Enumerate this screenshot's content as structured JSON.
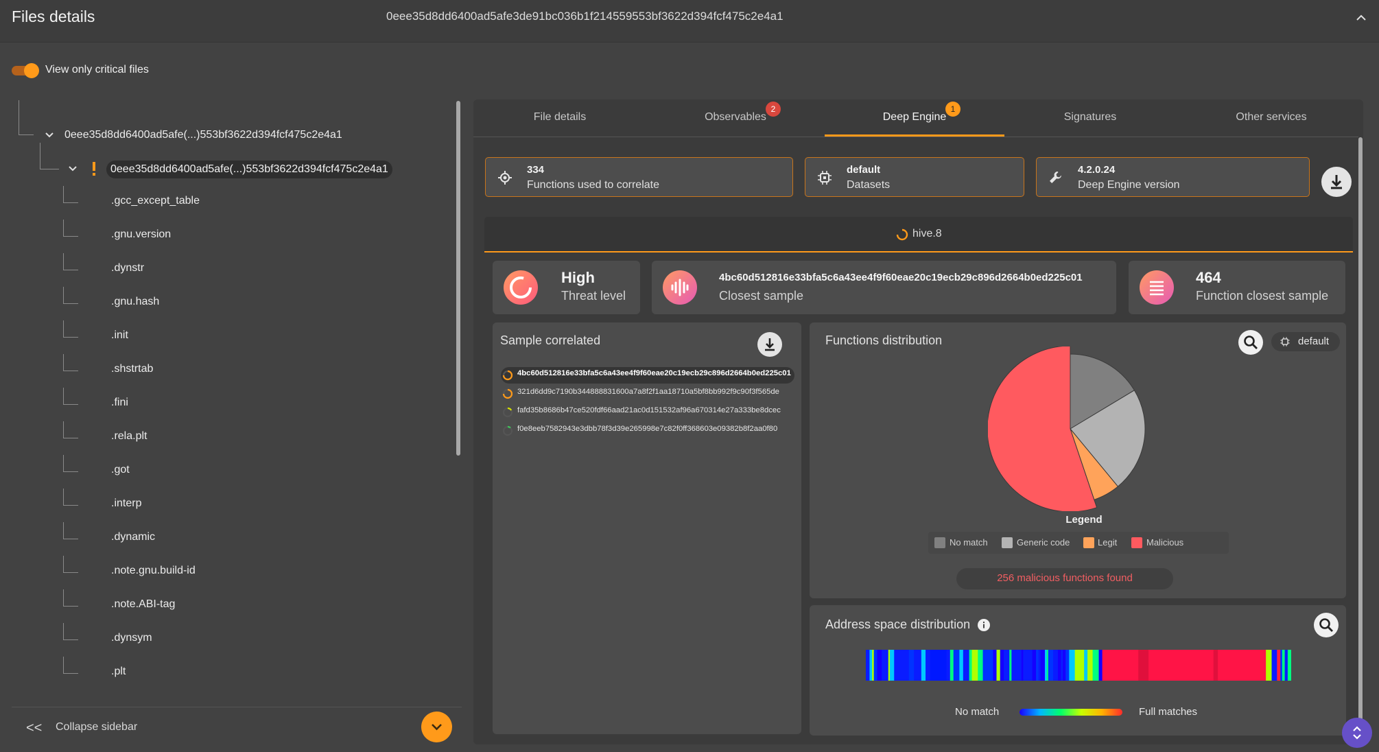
{
  "header": {
    "title": "Files details",
    "hash": "0eee35d8dd6400ad5afe3de91bc036b1f214559553bf3622d394fcf475c2e4a1"
  },
  "filter": {
    "toggle_label": "View only critical files",
    "enabled": true
  },
  "tree": {
    "root_label": "0eee35d8dd6400ad5afe(...)553bf3622d394fcf475c2e4a1",
    "child_label": "0eee35d8dd6400ad5afe(...)553bf3622d394fcf475c2e4a1",
    "sections": [
      ".gcc_except_table",
      ".gnu.version",
      ".dynstr",
      ".gnu.hash",
      ".init",
      ".shstrtab",
      ".fini",
      ".rela.plt",
      ".got",
      ".interp",
      ".dynamic",
      ".note.gnu.build-id",
      ".note.ABI-tag",
      ".dynsym",
      ".plt"
    ]
  },
  "sidebar_footer": {
    "collapse_label": "Collapse sidebar"
  },
  "tabs": [
    {
      "label": "File details",
      "badge": ""
    },
    {
      "label": "Observables",
      "badge": "2",
      "badge_color": "#d9473d"
    },
    {
      "label": "Deep Engine",
      "badge": "1",
      "badge_color": "#ff9a1a",
      "active": true
    },
    {
      "label": "Signatures",
      "badge": ""
    },
    {
      "label": "Other services",
      "badge": ""
    }
  ],
  "stats": [
    {
      "value": "334",
      "label": "Functions used to correlate",
      "icon": "target-icon"
    },
    {
      "value": "default",
      "label": "Datasets",
      "icon": "chip-icon"
    },
    {
      "value": "4.2.0.24",
      "label": "Deep Engine version",
      "icon": "wrench-icon"
    }
  ],
  "hive": {
    "label": "hive.8"
  },
  "summary": {
    "threat": {
      "value": "High",
      "label": "Threat level"
    },
    "closest": {
      "value": "4bc60d512816e33bfa5c6a43ee4f9f60eae20c19ecb29c896d2664b0ed225c01",
      "label": "Closest sample"
    },
    "functions": {
      "value": "464",
      "label": "Function closest sample"
    }
  },
  "sample_correlated": {
    "title": "Sample correlated",
    "rows": [
      "4bc60d512816e33bfa5c6a43ee4f9f60eae20c19ecb29c896d2664b0ed225c01",
      "321d6dd9c7190b344888831600a7a8f2f1aa18710a5bf8bb992f9c90f3f565de",
      "fafd35b8686b47ce520fdf66aad21ac0d151532af96a670314e27a333be8dcec",
      "f0e8eeb7582943e3dbb78f3d39e265998e7c82f0ff368603e09382b8f2aa0f80"
    ]
  },
  "functions_distribution": {
    "title": "Functions distribution",
    "dataset_label": "default",
    "legend_title": "Legend",
    "malicious_text": "256 malicious functions found"
  },
  "chart_data": {
    "type": "pie",
    "categories": [
      "No match",
      "Generic code",
      "Legit",
      "Malicious"
    ],
    "values": [
      76,
      105,
      27,
      256
    ],
    "colors": [
      "#808080",
      "#b3b3b3",
      "#ffa35a",
      "#ff5a5f"
    ],
    "legend": "bottom"
  },
  "address_space": {
    "title": "Address space distribution",
    "no_match_label": "No match",
    "full_label": "Full matches"
  }
}
